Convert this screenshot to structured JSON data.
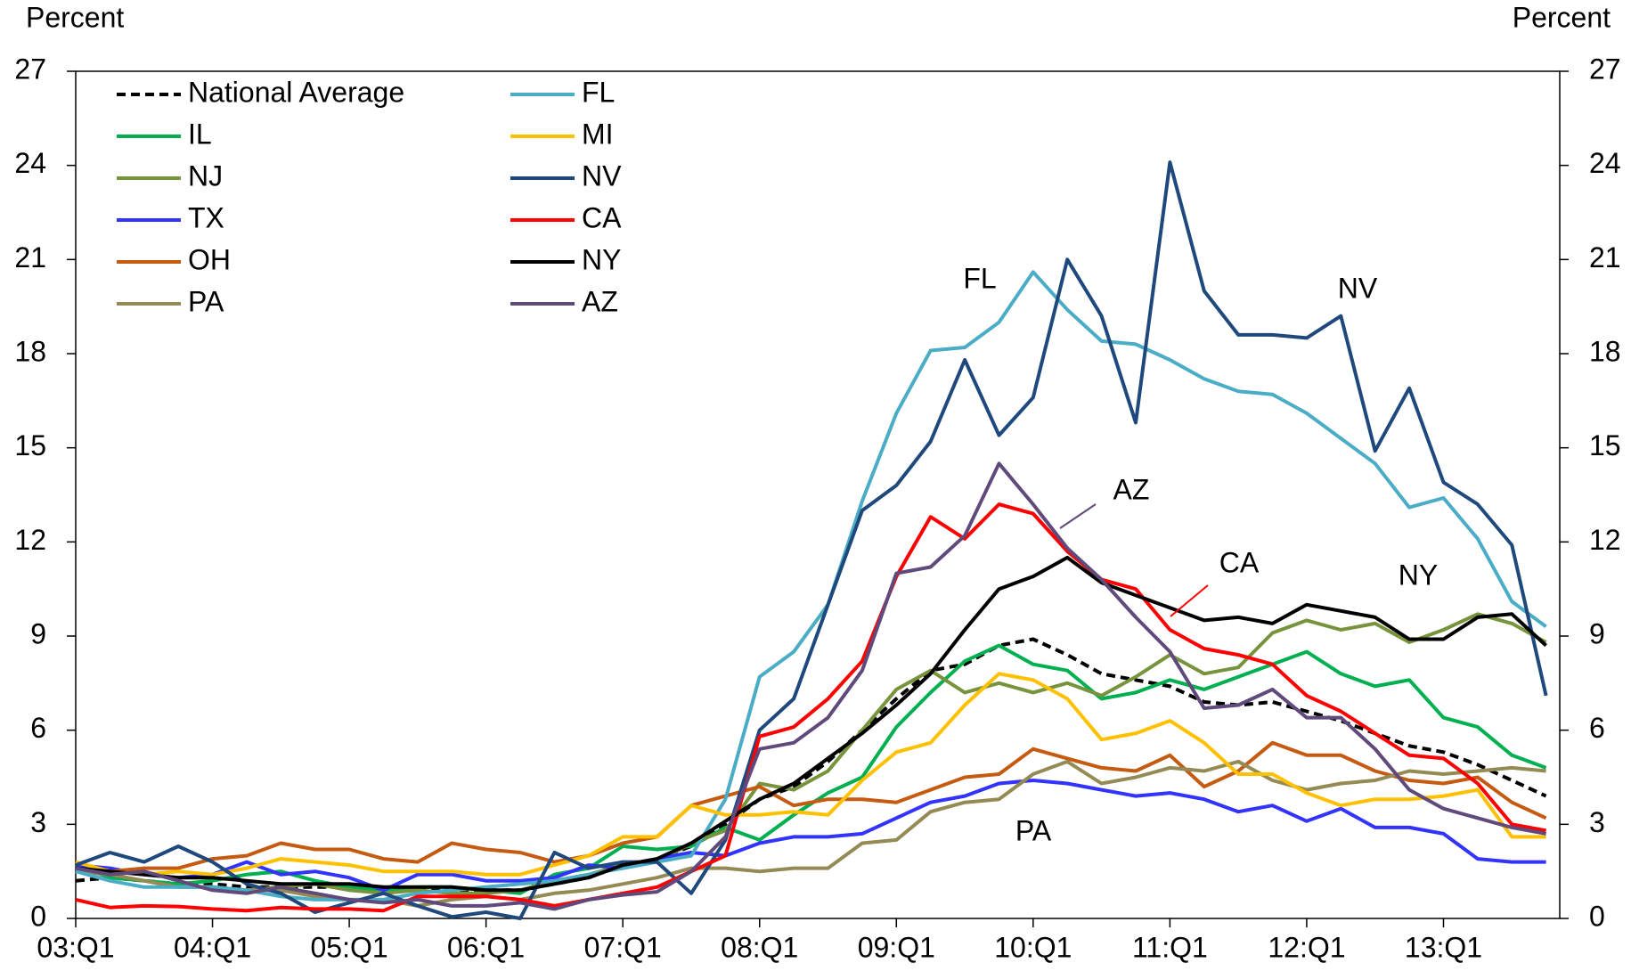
{
  "chart_data": {
    "type": "line",
    "y_label": "Percent",
    "y2_label": "Percent",
    "categories": [
      "03:Q1",
      null,
      null,
      null,
      "04:Q1",
      null,
      null,
      null,
      "05:Q1",
      null,
      null,
      null,
      "06:Q1",
      null,
      null,
      null,
      "07:Q1",
      null,
      null,
      null,
      "08:Q1",
      null,
      null,
      null,
      "09:Q1",
      null,
      null,
      null,
      "10:Q1",
      null,
      null,
      null,
      "11:Q1",
      null,
      null,
      null,
      "12:Q1",
      null,
      null,
      null,
      "13:Q1",
      null,
      null,
      null
    ],
    "ylim": [
      0,
      27
    ],
    "yticks": [
      0,
      3,
      6,
      9,
      12,
      15,
      18,
      21,
      24,
      27
    ],
    "y2lim": [
      0,
      27
    ],
    "y2ticks": [
      0,
      3,
      6,
      9,
      12,
      15,
      18,
      21,
      24,
      27
    ],
    "grid": false,
    "legend": "top-left",
    "annotations": [
      "FL",
      "NV",
      "AZ",
      "CA",
      "NY",
      "PA"
    ],
    "series": [
      {
        "name": "National Average",
        "color": "#000000",
        "style": "dashed",
        "values": [
          1.2,
          1.3,
          1.2,
          1.1,
          1.1,
          1.0,
          1.0,
          1.0,
          1.0,
          0.9,
          0.9,
          0.9,
          0.9,
          0.9,
          1.1,
          1.3,
          1.7,
          1.9,
          2.3,
          3.0,
          3.8,
          4.2,
          5.0,
          6.0,
          7.0,
          7.9,
          8.1,
          8.7,
          8.9,
          8.4,
          7.8,
          7.6,
          7.4,
          6.9,
          6.8,
          6.9,
          6.6,
          6.3,
          5.9,
          5.5,
          5.3,
          4.9,
          4.4,
          3.9
        ]
      },
      {
        "name": "IL",
        "color": "#00b050",
        "values": [
          1.7,
          1.3,
          1.2,
          1.1,
          1.2,
          1.4,
          1.5,
          1.2,
          1.0,
          0.9,
          1.0,
          1.0,
          0.9,
          0.8,
          1.4,
          1.6,
          2.3,
          2.2,
          2.3,
          2.9,
          2.5,
          3.3,
          4.0,
          4.5,
          6.1,
          7.2,
          8.2,
          8.7,
          8.1,
          7.9,
          7.0,
          7.2,
          7.6,
          7.3,
          7.7,
          8.1,
          8.5,
          7.8,
          7.4,
          7.6,
          6.4,
          6.1,
          5.2,
          4.8
        ]
      },
      {
        "name": "NJ",
        "color": "#77933c",
        "values": [
          1.6,
          1.4,
          1.2,
          1.0,
          1.0,
          0.9,
          1.0,
          1.1,
          0.9,
          0.8,
          0.9,
          0.8,
          0.8,
          0.9,
          1.2,
          1.4,
          1.7,
          1.8,
          2.4,
          2.8,
          4.3,
          4.1,
          4.7,
          6.0,
          7.3,
          7.9,
          7.2,
          7.5,
          7.2,
          7.5,
          7.1,
          7.7,
          8.4,
          7.8,
          8.0,
          9.1,
          9.5,
          9.2,
          9.4,
          8.8,
          9.2,
          9.7,
          9.4,
          8.8
        ]
      },
      {
        "name": "TX",
        "color": "#3333ff",
        "values": [
          1.7,
          1.6,
          1.4,
          1.3,
          1.4,
          1.8,
          1.4,
          1.5,
          1.3,
          0.9,
          1.4,
          1.4,
          1.2,
          1.2,
          1.3,
          1.7,
          1.6,
          1.9,
          2.1,
          2.0,
          2.4,
          2.6,
          2.6,
          2.7,
          3.2,
          3.7,
          3.9,
          4.3,
          4.4,
          4.3,
          4.1,
          3.9,
          4.0,
          3.8,
          3.4,
          3.6,
          3.1,
          3.5,
          2.9,
          2.9,
          2.7,
          1.9,
          1.8,
          1.8
        ]
      },
      {
        "name": "OH",
        "color": "#c55a11",
        "values": [
          1.5,
          1.5,
          1.6,
          1.6,
          1.9,
          2.0,
          2.4,
          2.2,
          2.2,
          1.9,
          1.8,
          2.4,
          2.2,
          2.1,
          1.8,
          2.0,
          2.4,
          2.6,
          3.6,
          3.9,
          4.2,
          3.6,
          3.8,
          3.8,
          3.7,
          4.1,
          4.5,
          4.6,
          5.4,
          5.1,
          4.8,
          4.7,
          5.2,
          4.2,
          4.7,
          5.6,
          5.2,
          5.2,
          4.7,
          4.4,
          4.3,
          4.5,
          3.7,
          3.2
        ]
      },
      {
        "name": "PA",
        "color": "#948a54",
        "values": [
          1.5,
          1.4,
          1.2,
          1.0,
          1.0,
          0.9,
          0.9,
          0.7,
          0.6,
          0.6,
          0.4,
          0.6,
          0.7,
          0.6,
          0.8,
          0.9,
          1.1,
          1.3,
          1.6,
          1.6,
          1.5,
          1.6,
          1.6,
          2.4,
          2.5,
          3.4,
          3.7,
          3.8,
          4.6,
          5.0,
          4.3,
          4.5,
          4.8,
          4.7,
          5.0,
          4.4,
          4.1,
          4.3,
          4.4,
          4.7,
          4.6,
          4.7,
          4.8,
          4.7
        ]
      },
      {
        "name": "FL",
        "color": "#4bacc6",
        "values": [
          1.5,
          1.2,
          1.0,
          1.0,
          1.0,
          0.9,
          0.7,
          0.6,
          0.6,
          0.6,
          0.8,
          0.9,
          1.0,
          1.1,
          1.2,
          1.4,
          1.6,
          1.8,
          2.0,
          3.8,
          7.7,
          8.5,
          10.0,
          13.3,
          16.1,
          18.1,
          18.2,
          19.0,
          20.6,
          19.4,
          18.4,
          18.3,
          17.8,
          17.2,
          16.8,
          16.7,
          16.1,
          15.3,
          14.5,
          13.1,
          13.4,
          12.1,
          10.1,
          9.3
        ]
      },
      {
        "name": "MI",
        "color": "#ffc000",
        "values": [
          1.8,
          1.5,
          1.4,
          1.5,
          1.4,
          1.6,
          1.9,
          1.8,
          1.7,
          1.5,
          1.5,
          1.5,
          1.4,
          1.4,
          1.7,
          2.0,
          2.6,
          2.6,
          3.6,
          3.3,
          3.3,
          3.4,
          3.3,
          4.4,
          5.3,
          5.6,
          6.8,
          7.8,
          7.6,
          7.0,
          5.7,
          5.9,
          6.3,
          5.6,
          4.6,
          4.6,
          4.0,
          3.6,
          3.8,
          3.8,
          3.9,
          4.1,
          2.6,
          2.6
        ]
      },
      {
        "name": "NV",
        "color": "#1f497d",
        "values": [
          1.7,
          2.1,
          1.8,
          2.3,
          1.8,
          1.1,
          0.8,
          0.2,
          0.5,
          0.8,
          0.4,
          0.05,
          0.2,
          0.0,
          2.1,
          1.6,
          1.8,
          1.8,
          0.8,
          2.5,
          6.0,
          7.0,
          10.0,
          13.0,
          13.8,
          15.2,
          17.8,
          15.4,
          16.6,
          21.0,
          19.2,
          15.8,
          24.1,
          20.0,
          18.6,
          18.6,
          18.5,
          19.2,
          14.9,
          16.9,
          13.9,
          13.2,
          11.9,
          7.1
        ]
      },
      {
        "name": "CA",
        "color": "#ff0000",
        "values": [
          0.6,
          0.35,
          0.4,
          0.38,
          0.3,
          0.25,
          0.35,
          0.3,
          0.3,
          0.25,
          0.7,
          0.7,
          0.7,
          0.6,
          0.4,
          0.6,
          0.8,
          1.0,
          1.5,
          2.0,
          5.8,
          6.1,
          7.0,
          8.2,
          10.9,
          12.8,
          12.1,
          13.2,
          12.9,
          11.7,
          10.8,
          10.5,
          9.2,
          8.6,
          8.4,
          8.1,
          7.1,
          6.6,
          5.9,
          5.2,
          5.1,
          4.3,
          3.0,
          2.8
        ]
      },
      {
        "name": "NY",
        "color": "#000000",
        "values": [
          1.6,
          1.5,
          1.4,
          1.3,
          1.3,
          1.2,
          1.1,
          1.1,
          1.1,
          1.0,
          1.0,
          1.0,
          0.9,
          0.9,
          1.1,
          1.3,
          1.7,
          1.9,
          2.4,
          3.1,
          3.8,
          4.3,
          5.1,
          5.9,
          6.8,
          7.8,
          9.2,
          10.5,
          10.9,
          11.5,
          10.7,
          10.3,
          9.9,
          9.5,
          9.6,
          9.4,
          10.0,
          9.8,
          9.6,
          8.9,
          8.9,
          9.6,
          9.7,
          8.7
        ]
      },
      {
        "name": "AZ",
        "color": "#604a7b",
        "values": [
          1.6,
          1.4,
          1.5,
          1.2,
          0.9,
          0.8,
          1.0,
          0.8,
          0.6,
          0.5,
          0.6,
          0.4,
          0.4,
          0.5,
          0.3,
          0.6,
          0.75,
          0.85,
          1.5,
          2.6,
          5.4,
          5.6,
          6.4,
          7.9,
          11.0,
          11.2,
          12.2,
          14.5,
          13.2,
          11.8,
          10.8,
          9.6,
          8.5,
          6.7,
          6.8,
          7.3,
          6.4,
          6.4,
          5.4,
          4.1,
          3.5,
          3.2,
          2.9,
          2.7
        ]
      }
    ]
  }
}
